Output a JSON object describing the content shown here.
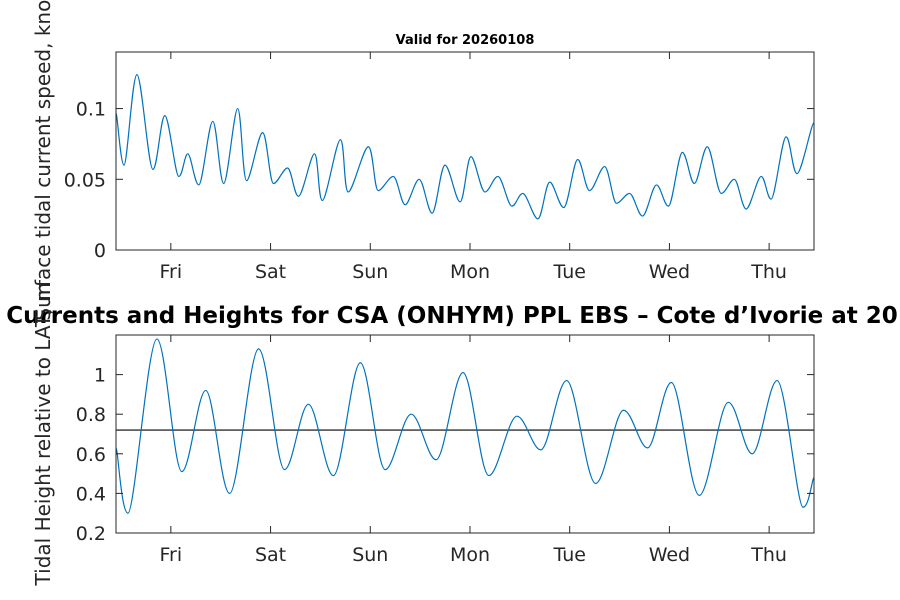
{
  "chart_data": [
    {
      "type": "line",
      "title": "Valid for 20260108",
      "xlabel": "",
      "ylabel": "Surface tidal current speed, knots",
      "xlim": [
        0,
        7
      ],
      "ylim": [
        0,
        0.14
      ],
      "x_ticks": [
        0.55,
        1.55,
        2.55,
        3.55,
        4.55,
        5.55,
        6.55
      ],
      "x_tick_labels": [
        "Fri",
        "Sat",
        "Sun",
        "Mon",
        "Tue",
        "Wed",
        "Thu"
      ],
      "y_ticks": [
        0,
        0.05,
        0.1
      ],
      "y_tick_labels": [
        "0",
        "0.05",
        "0.1"
      ],
      "grid": false,
      "series": [
        {
          "name": "Surface tidal current speed",
          "color": "#0072BD",
          "x": [
            0,
            0.08,
            0.21,
            0.37,
            0.49,
            0.63,
            0.72,
            0.83,
            0.97,
            1.08,
            1.22,
            1.31,
            1.47,
            1.58,
            1.72,
            1.83,
            1.99,
            2.07,
            2.25,
            2.33,
            2.53,
            2.63,
            2.78,
            2.9,
            3.04,
            3.17,
            3.3,
            3.45,
            3.56,
            3.7,
            3.83,
            3.97,
            4.08,
            4.23,
            4.35,
            4.49,
            4.63,
            4.75,
            4.9,
            5.02,
            5.15,
            5.28,
            5.42,
            5.54,
            5.68,
            5.8,
            5.93,
            6.07,
            6.2,
            6.32,
            6.47,
            6.57,
            6.72,
            6.83,
            7.0
          ],
          "y": [
            0.097,
            0.06,
            0.124,
            0.057,
            0.095,
            0.052,
            0.068,
            0.046,
            0.091,
            0.047,
            0.1,
            0.049,
            0.083,
            0.047,
            0.058,
            0.038,
            0.068,
            0.035,
            0.078,
            0.041,
            0.073,
            0.042,
            0.052,
            0.032,
            0.05,
            0.026,
            0.06,
            0.034,
            0.066,
            0.041,
            0.052,
            0.031,
            0.04,
            0.022,
            0.048,
            0.03,
            0.064,
            0.042,
            0.059,
            0.033,
            0.04,
            0.024,
            0.046,
            0.031,
            0.069,
            0.047,
            0.073,
            0.04,
            0.05,
            0.029,
            0.052,
            0.036,
            0.08,
            0.054,
            0.09
          ]
        }
      ]
    },
    {
      "type": "line",
      "title": "Currents and Heights for CSA (ONHYM) PPL EBS  – Cote d’Ivorie at 20",
      "xlabel": "",
      "ylabel": "Tidal Height relative to LAT, m",
      "xlim": [
        0,
        7
      ],
      "ylim": [
        0.2,
        1.2
      ],
      "x_ticks": [
        0.55,
        1.55,
        2.55,
        3.55,
        4.55,
        5.55,
        6.55
      ],
      "x_tick_labels": [
        "Fri",
        "Sat",
        "Sun",
        "Mon",
        "Tue",
        "Wed",
        "Thu"
      ],
      "y_ticks": [
        0.2,
        0.4,
        0.6,
        0.8,
        1.0
      ],
      "y_tick_labels": [
        "0.2",
        "0.4",
        "0.6",
        "0.8",
        "1"
      ],
      "grid": false,
      "reference_line": 0.72,
      "series": [
        {
          "name": "Tidal height",
          "color": "#0072BD",
          "x": [
            0,
            0.12,
            0.41,
            0.66,
            0.9,
            1.14,
            1.43,
            1.69,
            1.93,
            2.18,
            2.45,
            2.7,
            2.96,
            3.21,
            3.48,
            3.74,
            4.02,
            4.26,
            4.52,
            4.81,
            5.09,
            5.33,
            5.57,
            5.85,
            6.14,
            6.38,
            6.63,
            6.89,
            7.0
          ],
          "y": [
            0.63,
            0.3,
            1.18,
            0.51,
            0.92,
            0.4,
            1.13,
            0.52,
            0.85,
            0.49,
            1.06,
            0.52,
            0.8,
            0.57,
            1.01,
            0.49,
            0.79,
            0.62,
            0.97,
            0.45,
            0.82,
            0.63,
            0.96,
            0.39,
            0.86,
            0.6,
            0.97,
            0.33,
            0.48
          ]
        }
      ]
    }
  ]
}
